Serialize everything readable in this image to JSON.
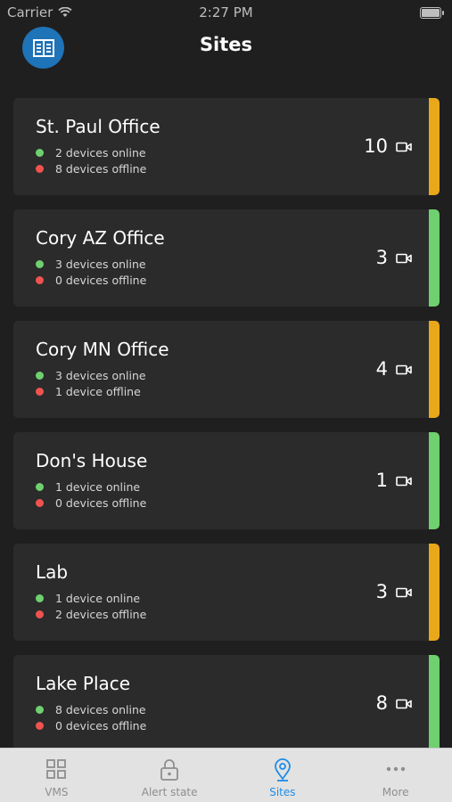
{
  "status_bar": {
    "carrier": "Carrier",
    "time": "2:27 PM"
  },
  "header": {
    "title": "Sites",
    "avatar_icon": "building-icon"
  },
  "colors": {
    "online": "#6fd06f",
    "offline": "#ef5350",
    "warning": "#e8a81a",
    "ok": "#6fd06f",
    "active_tab": "#1f8ce6"
  },
  "sites": [
    {
      "name": "St. Paul Office",
      "online_text": "2 devices online",
      "offline_text": "8 devices offline",
      "camera_count": "10",
      "status": "warning"
    },
    {
      "name": "Cory AZ Office",
      "online_text": "3 devices online",
      "offline_text": "0 devices offline",
      "camera_count": "3",
      "status": "ok"
    },
    {
      "name": "Cory MN Office",
      "online_text": "3 devices online",
      "offline_text": "1 device offline",
      "camera_count": "4",
      "status": "warning"
    },
    {
      "name": "Don's House",
      "online_text": "1 device online",
      "offline_text": "0 devices offline",
      "camera_count": "1",
      "status": "ok"
    },
    {
      "name": "Lab",
      "online_text": "1 device online",
      "offline_text": "2 devices offline",
      "camera_count": "3",
      "status": "warning"
    },
    {
      "name": "Lake Place",
      "online_text": "8 devices online",
      "offline_text": "0 devices offline",
      "camera_count": "8",
      "status": "ok"
    }
  ],
  "tabs": [
    {
      "label": "VMS",
      "icon": "grid-icon",
      "active": false
    },
    {
      "label": "Alert state",
      "icon": "lock-icon",
      "active": false
    },
    {
      "label": "Sites",
      "icon": "location-pin-icon",
      "active": true
    },
    {
      "label": "More",
      "icon": "more-dots-icon",
      "active": false
    }
  ]
}
